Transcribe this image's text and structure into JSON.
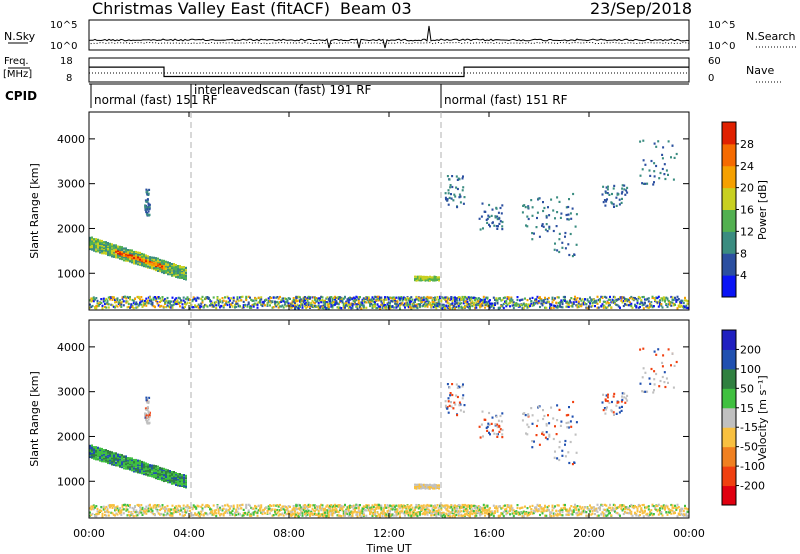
{
  "header": {
    "title": "Christmas Valley East (fitACF)",
    "beam": "Beam 03",
    "date": "23/Sep/2018"
  },
  "colors": {
    "power": [
      "#0a14f5",
      "#2b4fa0",
      "#3a8c80",
      "#52b050",
      "#c8d020",
      "#f5a000",
      "#f56a00",
      "#e02000"
    ],
    "velocity": [
      "#e00010",
      "#f04010",
      "#f08020",
      "#f8c040",
      "#c0c0c0",
      "#40c040",
      "#308040",
      "#2050b0",
      "#2020c0"
    ]
  },
  "chart_data": [
    {
      "type": "line",
      "name": "noise-panel",
      "left_label": "N.Sky",
      "right_label": "N.Search",
      "left_ticks": [
        "10^5",
        "10^0"
      ],
      "right_ticks": [
        "10^5",
        "10^0"
      ]
    },
    {
      "type": "line",
      "name": "freq-panel",
      "left_label": "Freq. [MHz]",
      "right_label": "Nave",
      "left_ticks": [
        18,
        8
      ],
      "right_ticks": [
        60,
        0
      ],
      "freq_ylim": [
        8,
        18
      ],
      "freq_segments": [
        {
          "t0": 0.0,
          "t1": 3.0,
          "value": 14.2
        },
        {
          "t0": 3.0,
          "t1": 15.0,
          "value": 10.3
        },
        {
          "t0": 15.0,
          "t1": 24.0,
          "value": 14.2
        }
      ]
    },
    {
      "type": "table",
      "name": "cpid",
      "label": "CPID",
      "segments": [
        {
          "t0": 0.0,
          "text": "normal (fast) 151 RF"
        },
        {
          "t0": 4.0,
          "text": "interleavedscan (fast) 191 RF"
        },
        {
          "t0": 14.0,
          "text": "normal (fast) 151 RF"
        }
      ]
    },
    {
      "type": "heatmap",
      "name": "power",
      "ylabel": "Slant Range [km]",
      "ylim": [
        180,
        4600
      ],
      "yticks": [
        1000,
        2000,
        3000,
        4000
      ],
      "colorbar_label": "Power [dB]",
      "colorbar_ticks": [
        4,
        8,
        12,
        16,
        20,
        24,
        28
      ],
      "colorbar_range": [
        0,
        32
      ]
    },
    {
      "type": "heatmap",
      "name": "velocity",
      "ylabel": "Slant Range [km]",
      "ylim": [
        180,
        4600
      ],
      "yticks": [
        1000,
        2000,
        3000,
        4000
      ],
      "xlabel": "Time UT",
      "xticks": [
        "00:00",
        "04:00",
        "08:00",
        "12:00",
        "16:00",
        "20:00",
        "00:00"
      ],
      "xlim": [
        0,
        24
      ],
      "colorbar_label": "Velocity [m s⁻¹]",
      "colorbar_ticks": [
        200,
        100,
        50,
        15,
        -15,
        -50,
        -100,
        -200
      ]
    }
  ]
}
